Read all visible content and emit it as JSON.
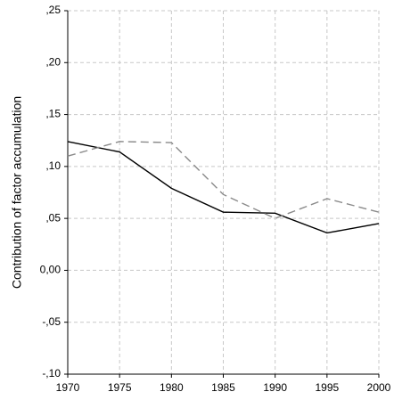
{
  "chart_data": {
    "type": "line",
    "y_label": "Contribution of factor accumulation",
    "x": [
      1970,
      1975,
      1980,
      1985,
      1990,
      1995,
      2000
    ],
    "xlim": [
      1970,
      2000
    ],
    "xticks": [
      1970,
      1975,
      1980,
      1985,
      1990,
      1995,
      2000
    ],
    "ylim": [
      -0.1,
      0.25
    ],
    "yticks": [
      {
        "value": -0.1,
        "label": "-,10"
      },
      {
        "value": -0.05,
        "label": "-,05"
      },
      {
        "value": 0,
        "label": "0,00"
      },
      {
        "value": 0.05,
        "label": ",05"
      },
      {
        "value": 0.1,
        "label": ",10"
      },
      {
        "value": 0.15,
        "label": ",15"
      },
      {
        "value": 0.2,
        "label": ",20"
      },
      {
        "value": 0.25,
        "label": ",25"
      }
    ],
    "grid": true,
    "series": [
      {
        "color": "#000000",
        "line_style": "solid",
        "values": [
          0.124,
          0.114,
          0.079,
          0.056,
          0.055,
          0.036,
          0.045
        ]
      },
      {
        "color": "#8a8a8a",
        "line_style": "dashed",
        "values": [
          0.11,
          0.124,
          0.123,
          0.073,
          0.05,
          0.069,
          0.056
        ]
      }
    ]
  }
}
